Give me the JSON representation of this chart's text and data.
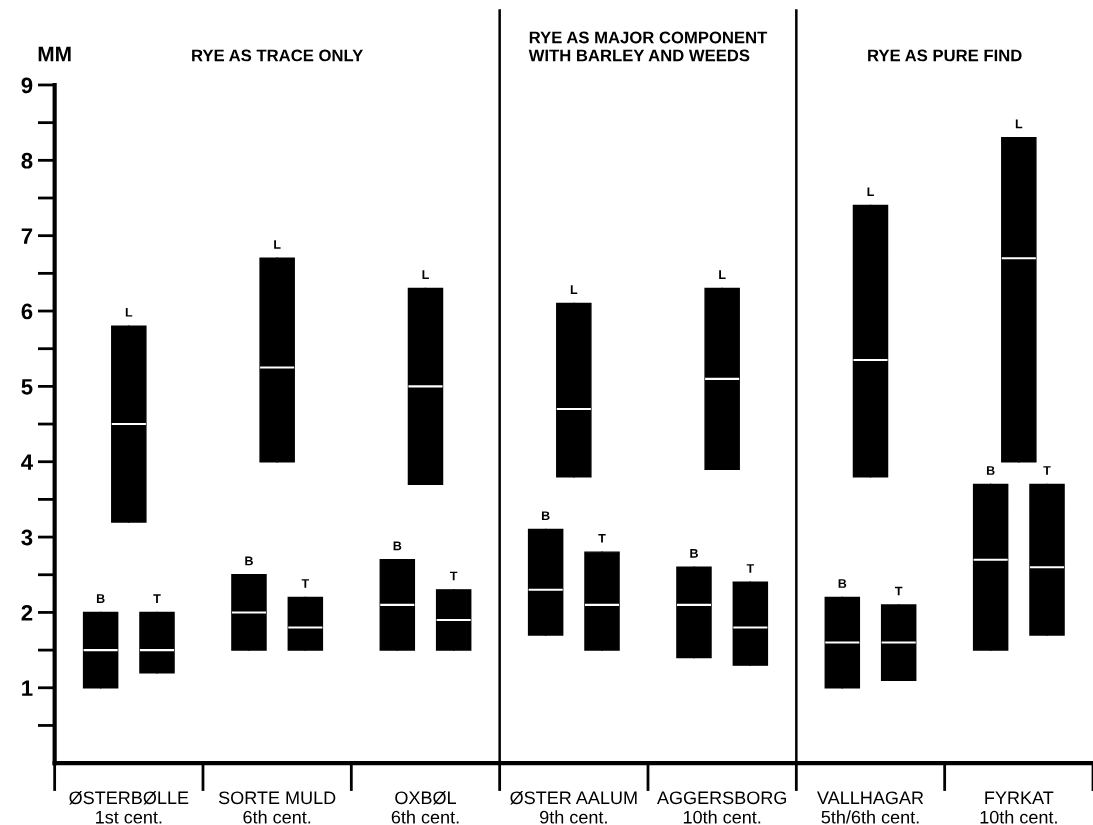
{
  "chart_data": {
    "type": "box",
    "ylabel": "MM",
    "categories": [
      "ØSTERBØLLE\n1st cent.",
      "SORTE MULD\n6th cent.",
      "OXBØL\n6th cent.",
      "ØSTER AALUM\n9th cent.",
      "AGGERSBORG\n10th cent.",
      "VALLHAGAR\n5th/6th cent.",
      "FYRKAT\n10th cent."
    ],
    "series": [
      {
        "name": "B",
        "color": "#000000",
        "boxes": [
          {
            "low": 1.0,
            "q1": 1.0,
            "median": 1.5,
            "q3": 2.0,
            "high": 2.0
          },
          {
            "low": 1.5,
            "q1": 1.5,
            "median": 2.0,
            "q3": 2.5,
            "high": 2.5
          },
          {
            "low": 1.5,
            "q1": 1.5,
            "median": 2.1,
            "q3": 2.7,
            "high": 2.7
          },
          {
            "low": 1.7,
            "q1": 1.7,
            "median": 2.3,
            "q3": 3.1,
            "high": 3.1
          },
          {
            "low": 1.4,
            "q1": 1.4,
            "median": 2.1,
            "q3": 2.6,
            "high": 2.6
          },
          {
            "low": 1.0,
            "q1": 1.0,
            "median": 1.6,
            "q3": 2.2,
            "high": 2.2
          },
          {
            "low": 1.5,
            "q1": 1.5,
            "median": 2.7,
            "q3": 3.7,
            "high": 3.7
          }
        ]
      },
      {
        "name": "L",
        "color": "#000000",
        "boxes": [
          {
            "low": 3.2,
            "q1": 3.2,
            "median": 4.5,
            "q3": 5.8,
            "high": 5.8
          },
          {
            "low": 4.0,
            "q1": 4.0,
            "median": 5.25,
            "q3": 6.7,
            "high": 6.7
          },
          {
            "low": 3.7,
            "q1": 3.7,
            "median": 5.0,
            "q3": 6.3,
            "high": 6.3
          },
          {
            "low": 3.8,
            "q1": 3.8,
            "median": 4.7,
            "q3": 6.1,
            "high": 6.1
          },
          {
            "low": 3.9,
            "q1": 3.9,
            "median": 5.1,
            "q3": 6.3,
            "high": 6.3
          },
          {
            "low": 3.8,
            "q1": 3.8,
            "median": 5.35,
            "q3": 7.4,
            "high": 7.4
          },
          {
            "low": 4.0,
            "q1": 4.0,
            "median": 6.7,
            "q3": 8.3,
            "high": 8.3
          }
        ]
      },
      {
        "name": "T",
        "color": "#000000",
        "boxes": [
          {
            "low": 1.2,
            "q1": 1.2,
            "median": 1.5,
            "q3": 2.0,
            "high": 2.0
          },
          {
            "low": 1.5,
            "q1": 1.5,
            "median": 1.8,
            "q3": 2.2,
            "high": 2.2
          },
          {
            "low": 1.5,
            "q1": 1.5,
            "median": 1.9,
            "q3": 2.3,
            "high": 2.3
          },
          {
            "low": 1.5,
            "q1": 1.5,
            "median": 2.1,
            "q3": 2.8,
            "high": 2.8
          },
          {
            "low": 1.3,
            "q1": 1.3,
            "median": 1.8,
            "q3": 2.4,
            "high": 2.4
          },
          {
            "low": 1.1,
            "q1": 1.1,
            "median": 1.6,
            "q3": 2.1,
            "high": 2.1
          },
          {
            "low": 1.7,
            "q1": 1.7,
            "median": 2.6,
            "q3": 3.7,
            "high": 3.7
          }
        ]
      }
    ],
    "ylim": [
      0,
      9
    ],
    "yticks": [
      1,
      2,
      3,
      4,
      5,
      6,
      7,
      8,
      9
    ],
    "annotations": [
      "RYE AS TRACE ONLY",
      "RYE AS MAJOR COMPONENT\nWITH BARLEY AND WEEDS",
      "RYE AS PURE FIND"
    ],
    "legend": false,
    "grid": false
  }
}
